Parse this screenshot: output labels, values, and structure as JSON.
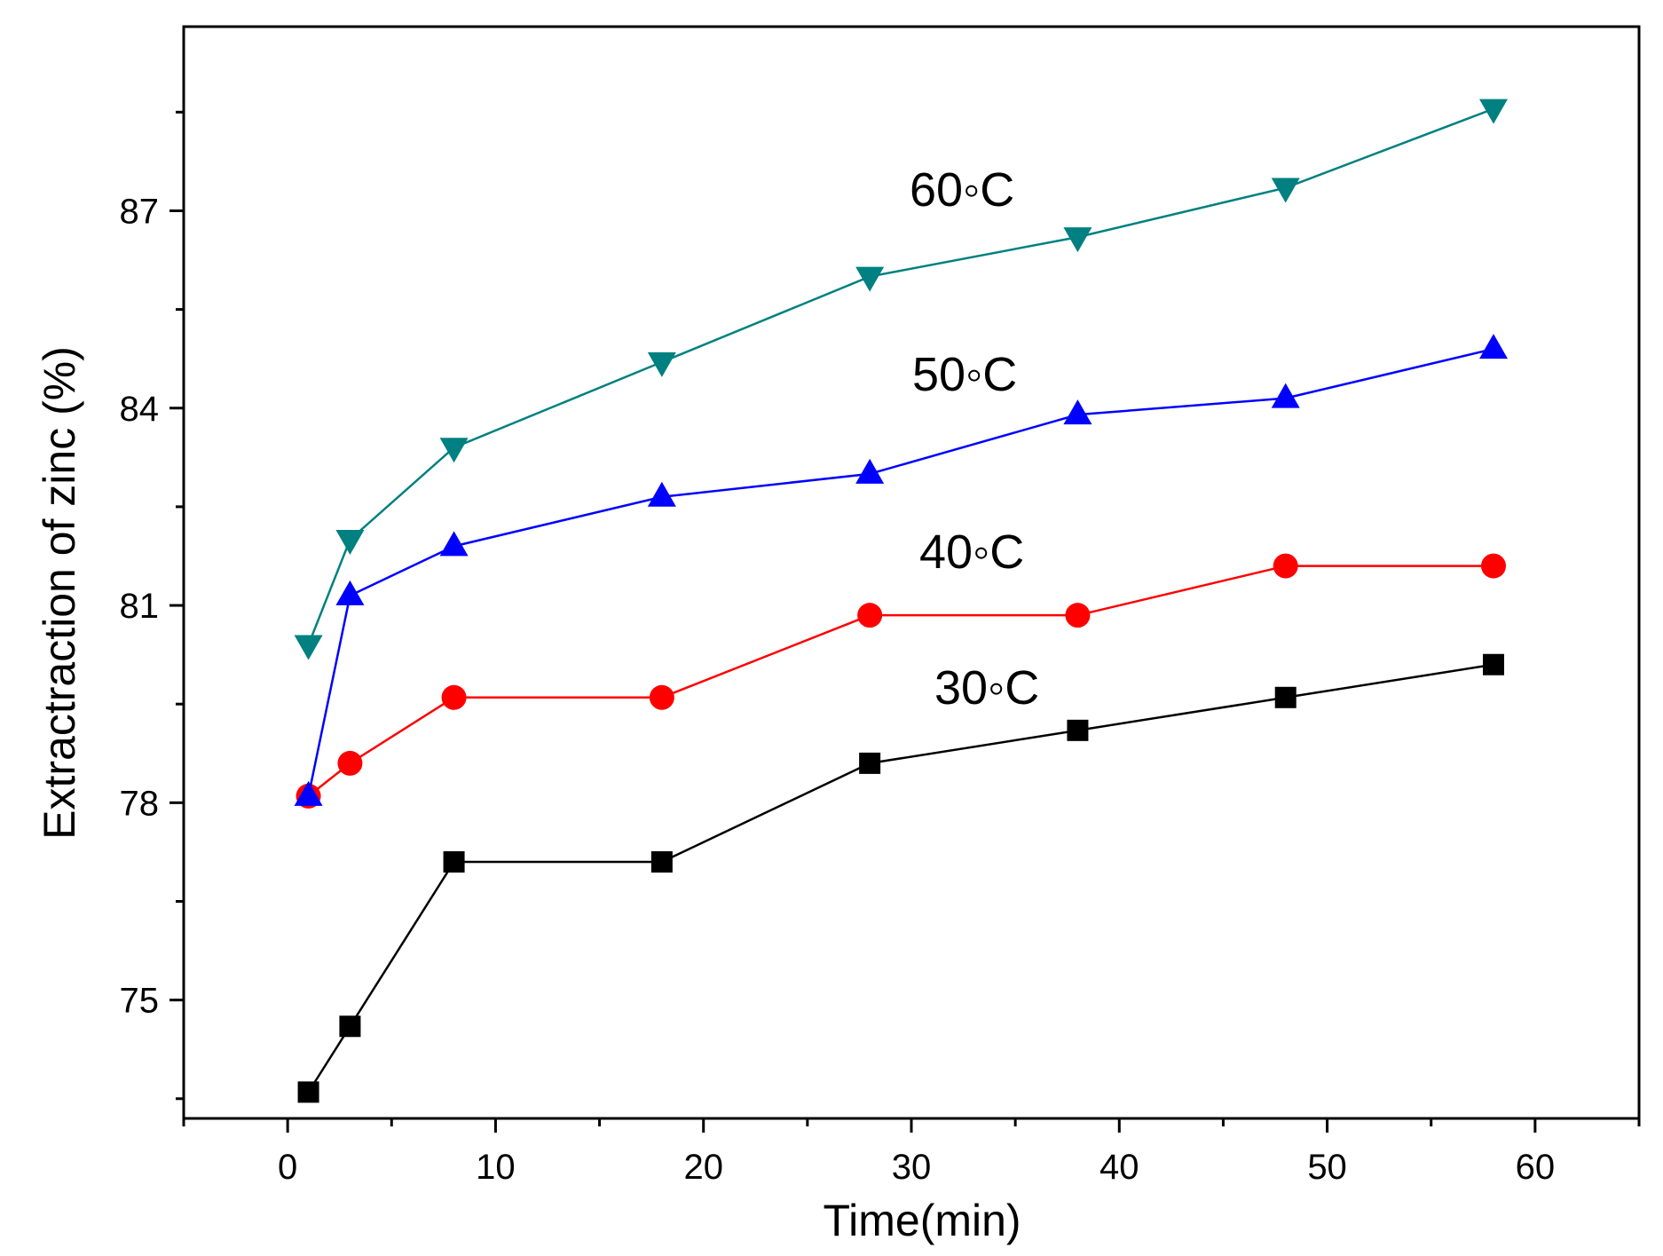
{
  "chart_data": {
    "type": "line",
    "title": "",
    "xlabel": "Time(min)",
    "ylabel": "Extractraction of  zinc (%)",
    "xlim": [
      -5,
      65
    ],
    "ylim": [
      73.2,
      89.8
    ],
    "x_ticks": [
      0,
      10,
      20,
      30,
      40,
      50,
      60
    ],
    "y_ticks": [
      75,
      78,
      81,
      84,
      87
    ],
    "x": [
      1,
      3,
      8,
      18,
      28,
      38,
      48,
      58
    ],
    "series": [
      {
        "name": "30°C",
        "label": "30◦C",
        "marker": "square",
        "color": "#000000",
        "values": [
          73.6,
          74.6,
          77.1,
          77.1,
          78.6,
          79.1,
          79.6,
          80.1
        ]
      },
      {
        "name": "40°C",
        "label": "40◦C",
        "marker": "circle",
        "color": "#ff0000",
        "values": [
          78.1,
          78.6,
          79.6,
          79.6,
          80.85,
          80.85,
          81.6,
          81.6
        ]
      },
      {
        "name": "50°C",
        "label": "50◦C",
        "marker": "triangle-up",
        "color": "#0000ff",
        "values": [
          78.1,
          81.15,
          81.9,
          82.65,
          83.0,
          83.9,
          84.15,
          84.9
        ]
      },
      {
        "name": "60°C",
        "label": "60◦C",
        "marker": "triangle-down",
        "color": "#008080",
        "values": [
          80.4,
          82.0,
          83.4,
          84.7,
          86.0,
          86.6,
          87.35,
          88.55
        ]
      }
    ]
  }
}
